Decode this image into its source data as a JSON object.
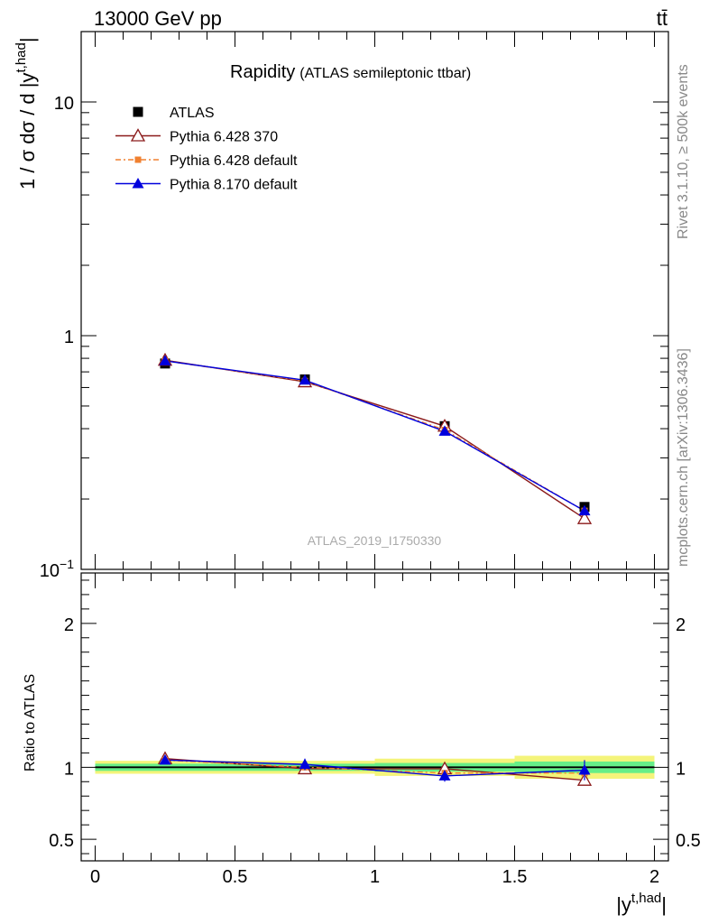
{
  "header": {
    "energy_label": "13000 GeV pp",
    "process_label": "tt̄"
  },
  "side_text": {
    "rivet": "Rivet 3.1.10, ≥ 500k events",
    "mcplots": "mcplots.cern.ch [arXiv:1306.3436]"
  },
  "chart_data": [
    {
      "type": "line",
      "title": "Rapidity",
      "subtitle": "(ATLAS semileptonic ttbar)",
      "watermark": "ATLAS_2019_I1750330",
      "ylabel": "1 / σ dσ / d |y",
      "ylabel_sup": "t,had",
      "ylabel_close": "|",
      "yscale": "log",
      "ylim": [
        0.1,
        20
      ],
      "xlim": [
        -0.05,
        2.05
      ],
      "y_ticks": [
        {
          "v": 10,
          "base": "10",
          "exp": ""
        },
        {
          "v": 1,
          "base": "1",
          "exp": ""
        },
        {
          "v": 0.1,
          "base": "10",
          "exp": "−1"
        }
      ],
      "legend_position": "top-left",
      "x": [
        0.25,
        0.75,
        1.25,
        1.75
      ],
      "series": [
        {
          "name": "ATLAS",
          "marker": "square",
          "color": "#000000",
          "values": [
            0.76,
            0.65,
            0.41,
            0.185
          ]
        },
        {
          "name": "Pythia 6.428 370",
          "marker": "open-triangle",
          "color": "#8b1a1a",
          "values": [
            0.785,
            0.635,
            0.41,
            0.165
          ]
        },
        {
          "name": "Pythia 6.428 default",
          "marker": "small-square",
          "color": "#f08030",
          "values": [
            0.78,
            0.64,
            0.395,
            0.178
          ]
        },
        {
          "name": "Pythia 8.170 default",
          "marker": "filled-triangle",
          "color": "#0000dd",
          "values": [
            0.78,
            0.645,
            0.39,
            0.178
          ]
        }
      ]
    },
    {
      "type": "line",
      "ylabel": "Ratio to ATLAS",
      "xlabel": "|y",
      "xlabel_sup": "t,had",
      "xlabel_close": "|",
      "ylim": [
        0.35,
        2.35
      ],
      "xlim": [
        -0.05,
        2.05
      ],
      "x_ticks": [
        {
          "v": 0,
          "label": "0"
        },
        {
          "v": 0.5,
          "label": "0.5"
        },
        {
          "v": 1,
          "label": "1"
        },
        {
          "v": 1.5,
          "label": "1.5"
        },
        {
          "v": 2,
          "label": "2"
        }
      ],
      "y_ticks": [
        {
          "v": 2,
          "label": "2"
        },
        {
          "v": 1,
          "label": "1"
        },
        {
          "v": 0.5,
          "label": "0.5"
        }
      ],
      "bands": [
        {
          "x0": 0,
          "x1": 0.5,
          "inner": 0.025,
          "outer": 0.045
        },
        {
          "x0": 0.5,
          "x1": 1.0,
          "inner": 0.025,
          "outer": 0.045
        },
        {
          "x0": 1.0,
          "x1": 1.5,
          "inner": 0.03,
          "outer": 0.06
        },
        {
          "x0": 1.5,
          "x1": 2.0,
          "inner": 0.04,
          "outer": 0.08
        }
      ],
      "band_colors": {
        "inner": "#66ee88",
        "outer": "#f4f47a"
      },
      "x": [
        0.25,
        0.75,
        1.25,
        1.75
      ],
      "series": [
        {
          "name": "Pythia 6.428 370",
          "marker": "open-triangle",
          "color": "#8b1a1a",
          "values": [
            1.06,
            0.99,
            0.99,
            0.91
          ],
          "errors": [
            0.012,
            0.012,
            0.015,
            0.02
          ]
        },
        {
          "name": "Pythia 6.428 default",
          "marker": "small-square",
          "color": "#f08030",
          "values": [
            1.05,
            1.0,
            0.96,
            0.96
          ],
          "errors": [
            0.012,
            0.012,
            0.015,
            0.02
          ]
        },
        {
          "name": "Pythia 8.170 default",
          "marker": "filled-triangle",
          "color": "#0000dd",
          "values": [
            1.05,
            1.02,
            0.94,
            0.98
          ],
          "errors": [
            0.015,
            0.04,
            0.04,
            0.07
          ]
        }
      ]
    }
  ]
}
